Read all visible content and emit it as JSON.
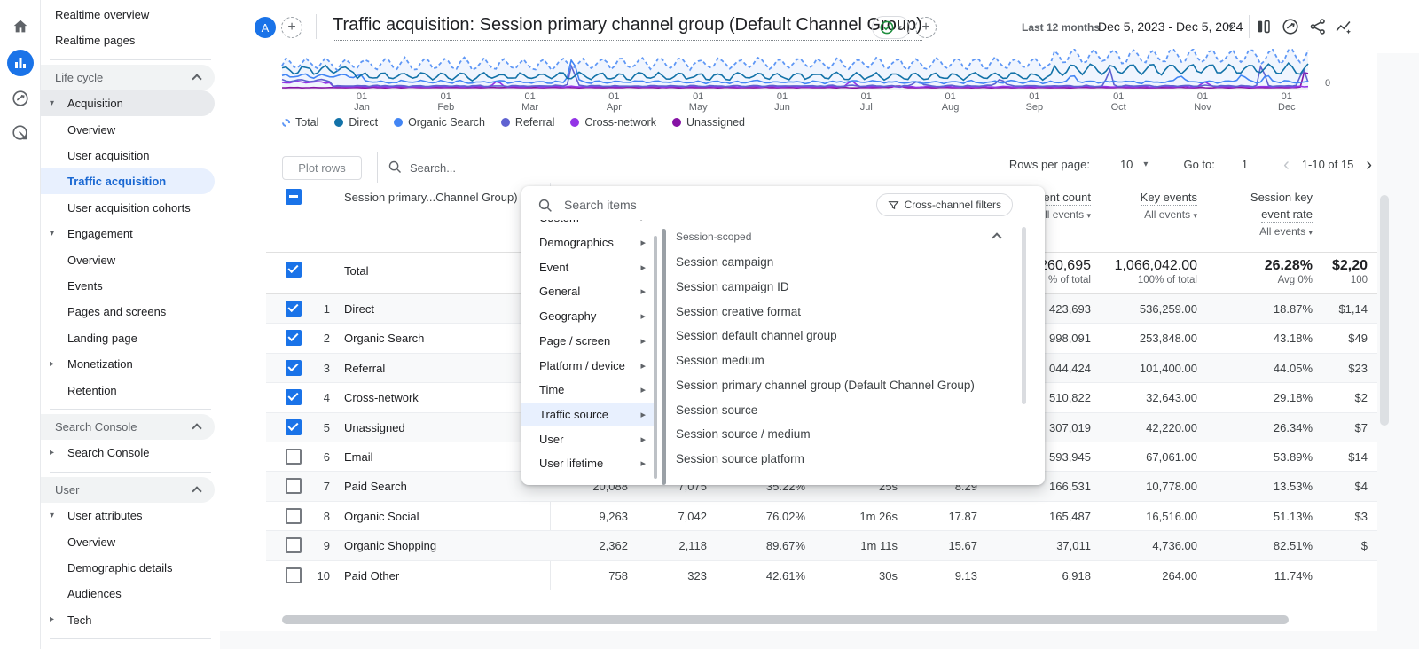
{
  "rail": {
    "icons": [
      "home",
      "reports",
      "explore",
      "advertising"
    ],
    "active": "reports"
  },
  "sidebar": {
    "items": [
      {
        "type": "link",
        "label": "Realtime overview"
      },
      {
        "type": "link",
        "label": "Realtime pages"
      },
      {
        "type": "divider"
      },
      {
        "type": "header",
        "label": "Life cycle"
      },
      {
        "type": "group",
        "label": "Acquisition",
        "state": "expanded",
        "shaded": true
      },
      {
        "type": "child",
        "label": "Overview"
      },
      {
        "type": "child",
        "label": "User acquisition"
      },
      {
        "type": "child",
        "label": "Traffic acquisition",
        "active": true
      },
      {
        "type": "child",
        "label": "User acquisition cohorts"
      },
      {
        "type": "group",
        "label": "Engagement",
        "state": "expanded"
      },
      {
        "type": "child",
        "label": "Overview"
      },
      {
        "type": "child",
        "label": "Events"
      },
      {
        "type": "child",
        "label": "Pages and screens"
      },
      {
        "type": "child",
        "label": "Landing page"
      },
      {
        "type": "group",
        "label": "Monetization",
        "state": "collapsed"
      },
      {
        "type": "group",
        "label": "Retention",
        "state": "none"
      },
      {
        "type": "divider"
      },
      {
        "type": "header",
        "label": "Search Console"
      },
      {
        "type": "group",
        "label": "Search Console",
        "state": "collapsed"
      },
      {
        "type": "divider"
      },
      {
        "type": "header",
        "label": "User"
      },
      {
        "type": "group",
        "label": "User attributes",
        "state": "expanded"
      },
      {
        "type": "child",
        "label": "Overview"
      },
      {
        "type": "child",
        "label": "Demographic details"
      },
      {
        "type": "child",
        "label": "Audiences"
      },
      {
        "type": "group",
        "label": "Tech",
        "state": "collapsed"
      },
      {
        "type": "divider"
      }
    ]
  },
  "header": {
    "avatar": "A",
    "title": "Traffic acquisition: Session primary channel group (Default Channel Group)",
    "date_preset": "Last 12 months",
    "date_range": "Dec 5, 2023 - Dec 5, 2024",
    "accent_color": "#1a73e8",
    "check_badge_color": "#1e8e3e"
  },
  "chart": {
    "y_tick_right": "0",
    "x_ticks": [
      {
        "day": "01",
        "month": "Jan"
      },
      {
        "day": "01",
        "month": "Feb"
      },
      {
        "day": "01",
        "month": "Mar"
      },
      {
        "day": "01",
        "month": "Apr"
      },
      {
        "day": "01",
        "month": "May"
      },
      {
        "day": "01",
        "month": "Jun"
      },
      {
        "day": "01",
        "month": "Jul"
      },
      {
        "day": "01",
        "month": "Aug"
      },
      {
        "day": "01",
        "month": "Sep"
      },
      {
        "day": "01",
        "month": "Oct"
      },
      {
        "day": "01",
        "month": "Nov"
      },
      {
        "day": "01",
        "month": "Dec"
      }
    ],
    "legend": [
      {
        "label": "Total",
        "color": "#5e97f6",
        "dashed": true
      },
      {
        "label": "Direct",
        "color": "#1272a8"
      },
      {
        "label": "Organic Search",
        "color": "#4285f4"
      },
      {
        "label": "Referral",
        "color": "#5f62d1"
      },
      {
        "label": "Cross-network",
        "color": "#9334e6"
      },
      {
        "label": "Unassigned",
        "color": "#8613a5"
      }
    ]
  },
  "controls": {
    "plot_rows": "Plot rows",
    "search_placeholder": "Search...",
    "rows_per_page_label": "Rows per page:",
    "rows_per_page_value": "10",
    "goto_label": "Go to:",
    "goto_value": "1",
    "range": "1-10 of 15",
    "prev_icon": "‹",
    "next_icon": "›"
  },
  "table": {
    "dimension_header": "Session primary...Channel Group)",
    "col_event_count": {
      "line1": "Event count",
      "sub": "All events"
    },
    "col_key_events": {
      "line1": "Key events",
      "sub": "All events"
    },
    "col_rate": {
      "line1": "Session key",
      "line2": "event rate",
      "sub": "All events"
    },
    "total": {
      "label": "Total",
      "event_count": "260,695",
      "event_count_sub": "% of total",
      "key_events": "1,066,042.00",
      "key_events_sub": "100% of total",
      "rate": "26.28%",
      "rate_sub": "Avg 0%",
      "revenue": "$2,20",
      "revenue_sub": "100"
    },
    "rows": [
      {
        "i": "1",
        "name": "Direct",
        "checked": true,
        "sessions": "",
        "engaged": "",
        "eng_rate": "",
        "avg_time": "",
        "eps": "",
        "event_count": "423,693",
        "key_events": "536,259.00",
        "rate": "18.87%",
        "revenue": "$1,14"
      },
      {
        "i": "2",
        "name": "Organic Search",
        "checked": true,
        "sessions": "",
        "engaged": "",
        "eng_rate": "",
        "avg_time": "",
        "eps": "",
        "event_count": "998,091",
        "key_events": "253,848.00",
        "rate": "43.18%",
        "revenue": "$49"
      },
      {
        "i": "3",
        "name": "Referral",
        "checked": true,
        "sessions": "",
        "engaged": "",
        "eng_rate": "",
        "avg_time": "",
        "eps": "",
        "event_count": "044,424",
        "key_events": "101,400.00",
        "rate": "44.05%",
        "revenue": "$23"
      },
      {
        "i": "4",
        "name": "Cross-network",
        "checked": true,
        "sessions": "",
        "engaged": "",
        "eng_rate": "",
        "avg_time": "",
        "eps": "",
        "event_count": "510,822",
        "key_events": "32,643.00",
        "rate": "29.18%",
        "revenue": "$2"
      },
      {
        "i": "5",
        "name": "Unassigned",
        "checked": true,
        "sessions": "",
        "engaged": "",
        "eng_rate": "",
        "avg_time": "",
        "eps": "",
        "event_count": "307,019",
        "key_events": "42,220.00",
        "rate": "26.34%",
        "revenue": "$7"
      },
      {
        "i": "6",
        "name": "Email",
        "checked": false,
        "sessions": "",
        "engaged": "",
        "eng_rate": "",
        "avg_time": "",
        "eps": "",
        "event_count": "593,945",
        "key_events": "67,061.00",
        "rate": "53.89%",
        "revenue": "$14"
      },
      {
        "i": "7",
        "name": "Paid Search",
        "checked": false,
        "sessions": "20,088",
        "engaged": "7,075",
        "eng_rate": "35.22%",
        "avg_time": "25s",
        "eps": "8.29",
        "event_count": "166,531",
        "key_events": "10,778.00",
        "rate": "13.53%",
        "revenue": "$4"
      },
      {
        "i": "8",
        "name": "Organic Social",
        "checked": false,
        "sessions": "9,263",
        "engaged": "7,042",
        "eng_rate": "76.02%",
        "avg_time": "1m 26s",
        "eps": "17.87",
        "event_count": "165,487",
        "key_events": "16,516.00",
        "rate": "51.13%",
        "revenue": "$3"
      },
      {
        "i": "9",
        "name": "Organic Shopping",
        "checked": false,
        "sessions": "2,362",
        "engaged": "2,118",
        "eng_rate": "89.67%",
        "avg_time": "1m 11s",
        "eps": "15.67",
        "event_count": "37,011",
        "key_events": "4,736.00",
        "rate": "82.51%",
        "revenue": "$"
      },
      {
        "i": "10",
        "name": "Paid Other",
        "checked": false,
        "sessions": "758",
        "engaged": "323",
        "eng_rate": "42.61%",
        "avg_time": "30s",
        "eps": "9.13",
        "event_count": "6,918",
        "key_events": "264.00",
        "rate": "11.74%",
        "revenue": ""
      }
    ]
  },
  "popup": {
    "search_placeholder": "Search items",
    "filter_chip": "Cross-channel filters",
    "categories": [
      {
        "label": "Custom"
      },
      {
        "label": "Demographics"
      },
      {
        "label": "Event"
      },
      {
        "label": "General"
      },
      {
        "label": "Geography"
      },
      {
        "label": "Page / screen"
      },
      {
        "label": "Platform / device"
      },
      {
        "label": "Time"
      },
      {
        "label": "Traffic source",
        "active": true
      },
      {
        "label": "User"
      },
      {
        "label": "User lifetime"
      }
    ],
    "section": "Session-scoped",
    "items": [
      "Session campaign",
      "Session campaign ID",
      "Session creative format",
      "Session default channel group",
      "Session medium",
      "Session primary channel group (Default Channel Group)",
      "Session source",
      "Session source / medium",
      "Session source platform"
    ]
  }
}
